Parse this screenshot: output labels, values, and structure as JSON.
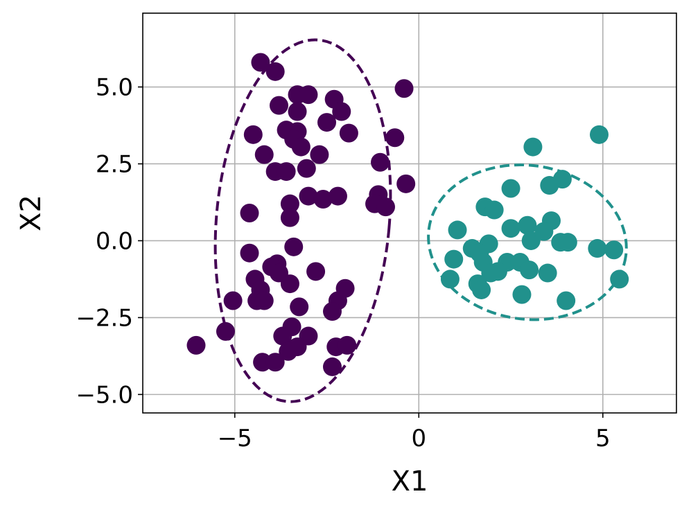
{
  "chart_data": {
    "type": "scatter",
    "title": "",
    "xlabel": "X1",
    "ylabel": "X2",
    "xlim": [
      -7.5,
      7.0
    ],
    "ylim": [
      -5.6,
      7.4
    ],
    "xticks": [
      -5,
      0,
      5
    ],
    "xtick_labels": [
      "−5",
      "0",
      "5"
    ],
    "yticks": [
      -5.0,
      -2.5,
      0.0,
      2.5,
      5.0
    ],
    "ytick_labels": [
      "−5.0",
      "−2.5",
      "0.0",
      "2.5",
      "5.0"
    ],
    "grid": true,
    "series": [
      {
        "color": "#440154",
        "points": [
          [
            -4.3,
            5.8
          ],
          [
            -3.9,
            5.5
          ],
          [
            -3.8,
            4.4
          ],
          [
            -3.3,
            4.75
          ],
          [
            -3.0,
            4.75
          ],
          [
            -2.3,
            4.6
          ],
          [
            -0.4,
            4.95
          ],
          [
            -3.3,
            4.2
          ],
          [
            -2.1,
            4.2
          ],
          [
            -2.5,
            3.85
          ],
          [
            -4.5,
            3.45
          ],
          [
            -3.6,
            3.6
          ],
          [
            -3.3,
            3.55
          ],
          [
            -1.9,
            3.5
          ],
          [
            -0.65,
            3.35
          ],
          [
            -3.4,
            3.3
          ],
          [
            -3.2,
            3.05
          ],
          [
            -4.2,
            2.8
          ],
          [
            -2.7,
            2.8
          ],
          [
            -1.05,
            2.55
          ],
          [
            -3.9,
            2.25
          ],
          [
            -3.6,
            2.25
          ],
          [
            -3.05,
            2.35
          ],
          [
            -0.35,
            1.85
          ],
          [
            -1.1,
            1.5
          ],
          [
            -3.0,
            1.45
          ],
          [
            -2.6,
            1.35
          ],
          [
            -2.2,
            1.45
          ],
          [
            -3.5,
            1.2
          ],
          [
            -1.2,
            1.2
          ],
          [
            -0.9,
            1.1
          ],
          [
            -4.6,
            0.9
          ],
          [
            -3.5,
            0.75
          ],
          [
            -3.4,
            -0.2
          ],
          [
            -4.6,
            -0.4
          ],
          [
            -3.85,
            -0.75
          ],
          [
            -4.0,
            -0.85
          ],
          [
            -4.45,
            -1.25
          ],
          [
            -4.3,
            -1.6
          ],
          [
            -3.8,
            -1.05
          ],
          [
            -3.5,
            -1.4
          ],
          [
            -2.8,
            -1.0
          ],
          [
            -2.0,
            -1.55
          ],
          [
            -5.05,
            -1.95
          ],
          [
            -4.4,
            -1.95
          ],
          [
            -4.2,
            -1.95
          ],
          [
            -3.25,
            -2.15
          ],
          [
            -2.2,
            -1.95
          ],
          [
            -2.35,
            -2.3
          ],
          [
            -3.45,
            -2.8
          ],
          [
            -3.7,
            -3.1
          ],
          [
            -3.0,
            -3.1
          ],
          [
            -3.55,
            -3.6
          ],
          [
            -3.3,
            -3.45
          ],
          [
            -2.25,
            -3.45
          ],
          [
            -1.95,
            -3.4
          ],
          [
            -6.05,
            -3.4
          ],
          [
            -5.25,
            -2.95
          ],
          [
            -4.25,
            -3.95
          ],
          [
            -3.9,
            -3.95
          ],
          [
            -2.35,
            -4.1
          ]
        ],
        "ellipse": {
          "center": [
            -3.15,
            0.65
          ],
          "rx": 2.35,
          "ry": 5.9,
          "angle_deg": 5
        }
      },
      {
        "color": "#21918c",
        "points": [
          [
            4.9,
            3.45
          ],
          [
            3.1,
            3.05
          ],
          [
            3.9,
            2.0
          ],
          [
            2.5,
            1.7
          ],
          [
            3.55,
            1.8
          ],
          [
            1.8,
            1.1
          ],
          [
            2.05,
            1.0
          ],
          [
            3.6,
            0.65
          ],
          [
            1.05,
            0.35
          ],
          [
            2.5,
            0.4
          ],
          [
            2.95,
            0.5
          ],
          [
            3.05,
            0.0
          ],
          [
            3.4,
            0.3
          ],
          [
            3.85,
            -0.05
          ],
          [
            4.05,
            -0.05
          ],
          [
            1.9,
            -0.1
          ],
          [
            1.45,
            -0.25
          ],
          [
            1.65,
            -0.4
          ],
          [
            4.85,
            -0.25
          ],
          [
            5.3,
            -0.3
          ],
          [
            0.95,
            -0.6
          ],
          [
            1.75,
            -0.7
          ],
          [
            2.4,
            -0.7
          ],
          [
            2.75,
            -0.7
          ],
          [
            1.95,
            -1.05
          ],
          [
            2.15,
            -1.0
          ],
          [
            3.0,
            -0.95
          ],
          [
            3.5,
            -1.05
          ],
          [
            0.85,
            -1.25
          ],
          [
            1.6,
            -1.4
          ],
          [
            1.7,
            -1.6
          ],
          [
            2.8,
            -1.75
          ],
          [
            4.0,
            -1.95
          ],
          [
            5.45,
            -1.25
          ]
        ],
        "ellipse": {
          "center": [
            2.95,
            -0.05
          ],
          "rx": 2.7,
          "ry": 2.5,
          "angle_deg": 8
        }
      }
    ]
  }
}
